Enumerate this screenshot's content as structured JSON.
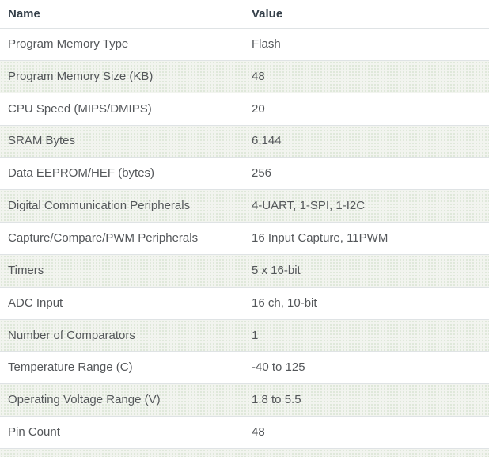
{
  "table": {
    "headers": {
      "name": "Name",
      "value": "Value"
    },
    "rows": [
      {
        "name": "Program Memory Type",
        "value": "Flash"
      },
      {
        "name": "Program Memory Size (KB)",
        "value": "48"
      },
      {
        "name": "CPU Speed (MIPS/DMIPS)",
        "value": "20"
      },
      {
        "name": "SRAM Bytes",
        "value": "6,144"
      },
      {
        "name": "Data EEPROM/HEF (bytes)",
        "value": "256"
      },
      {
        "name": "Digital Communication Peripherals",
        "value": "4-UART, 1-SPI, 1-I2C"
      },
      {
        "name": "Capture/Compare/PWM Peripherals",
        "value": "16 Input Capture, 11PWM"
      },
      {
        "name": "Timers",
        "value": "5 x 16-bit"
      },
      {
        "name": "ADC Input",
        "value": "16 ch, 10-bit"
      },
      {
        "name": "Number of Comparators",
        "value": "1"
      },
      {
        "name": "Temperature Range (C)",
        "value": "-40 to 125"
      },
      {
        "name": "Operating Voltage Range (V)",
        "value": "1.8 to 5.5"
      },
      {
        "name": "Pin Count",
        "value": "48"
      }
    ],
    "colors": {
      "header_text": "#333e48",
      "cell_text": "#54575a",
      "row_border": "#dfe3e5",
      "alt_row_bg": "#f2f4ef",
      "alt_row_dot": "#dde7d8"
    }
  }
}
